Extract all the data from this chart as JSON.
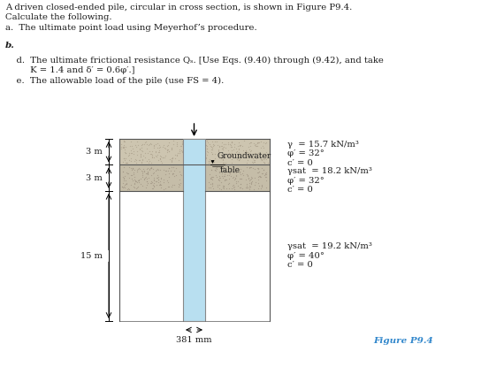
{
  "title_lines": [
    "A driven closed-ended pile, circular in cross section, is shown in Figure P9.4.",
    "Calculate the following.",
    "a.  The ultimate point load using Meyerhof’s procedure."
  ],
  "b_label": "b.",
  "d_line1": "    d.  The ultimate frictional resistance Qₛ. [Use Eqs. (9.40) through (9.42), and take",
  "d_line2": "         K = 1.4 and δ′ = 0.6φ′.]",
  "e_line": "    e.  The allowable load of the pile (use FS = 4).",
  "figure_label": "Figure P9.4",
  "layer1_label": "3 m",
  "layer2_label": "3 m",
  "layer3_label": "15 m",
  "pile_width_label": "381 mm",
  "groundwater_label1": "Groundwater",
  "groundwater_label2": "table",
  "layer1_props": [
    "γ  = 15.7 kN/m³",
    "φ′ = 32°",
    "c′ = 0"
  ],
  "layer2_props": [
    "γsat  = 18.2 kN/m³",
    "φ′ = 32°",
    "c′ = 0"
  ],
  "layer3_props": [
    "γsat  = 19.2 kN/m³",
    "φ′ = 40°",
    "c′ = 0"
  ],
  "bg_color": "#ffffff",
  "soil_color1": "#cdc5b0",
  "soil_color2": "#c5bda8",
  "dot_color1": "#a89c88",
  "dot_color2": "#9c9080",
  "pile_color": "#b8dff0",
  "pile_border": "#888888",
  "text_color": "#1a1a1a",
  "figure_text_color": "#3388cc",
  "line_color": "#555555"
}
